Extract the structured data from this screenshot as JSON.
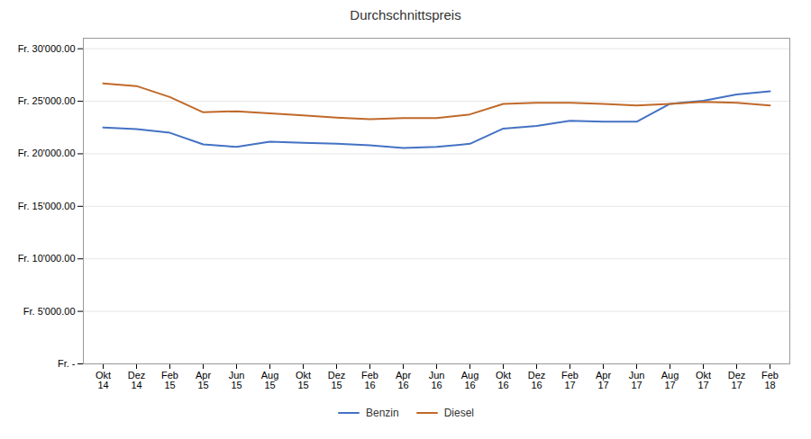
{
  "chart_data": {
    "type": "line",
    "title": "Durchschnittspreis",
    "categories": [
      "Okt\n14",
      "Dez\n14",
      "Feb\n15",
      "Apr\n15",
      "Jun\n15",
      "Aug\n15",
      "Okt\n15",
      "Dez\n15",
      "Feb\n16",
      "Apr\n16",
      "Jun\n16",
      "Aug\n16",
      "Okt\n16",
      "Dez\n16",
      "Feb\n17",
      "Apr\n17",
      "Jun\n17",
      "Aug\n17",
      "Okt\n17",
      "Dez\n17",
      "Feb\n18"
    ],
    "series": [
      {
        "name": "Benzin",
        "color": "#4472C4",
        "values": [
          22500,
          22350,
          22000,
          20900,
          20650,
          21150,
          21050,
          20950,
          20800,
          20550,
          20650,
          20950,
          22400,
          22650,
          23150,
          23050,
          23050,
          24750,
          25050,
          25650,
          25950
        ]
      },
      {
        "name": "Diesel",
        "color": "#C0692A",
        "values": [
          26700,
          26450,
          25400,
          23950,
          24050,
          23850,
          23650,
          23450,
          23300,
          23400,
          23400,
          23750,
          24750,
          24850,
          24850,
          24750,
          24600,
          24750,
          24950,
          24850,
          24600
        ]
      }
    ],
    "ylim": [
      0,
      31000
    ],
    "yticks": [
      {
        "value": 0,
        "label": "Fr. -"
      },
      {
        "value": 5000,
        "label": "Fr. 5'000.00"
      },
      {
        "value": 10000,
        "label": "Fr. 10'000.00"
      },
      {
        "value": 15000,
        "label": "Fr. 15'000.00"
      },
      {
        "value": 20000,
        "label": "Fr. 20'000.00"
      },
      {
        "value": 25000,
        "label": "Fr. 25'000.00"
      },
      {
        "value": 30000,
        "label": "Fr. 30'000.00"
      }
    ],
    "grid": true,
    "legend": "bottom"
  }
}
